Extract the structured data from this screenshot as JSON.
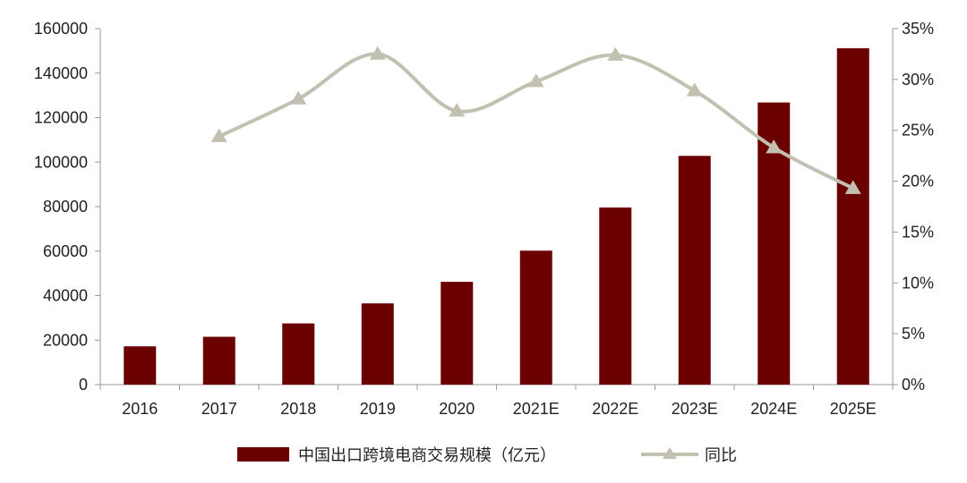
{
  "chart_data": {
    "type": "bar",
    "categories": [
      "2016",
      "2017",
      "2018",
      "2019",
      "2020",
      "2021E",
      "2022E",
      "2023E",
      "2024E",
      "2025E"
    ],
    "series": [
      {
        "name": "中国出口跨境电商交易规模（亿元）",
        "type": "bar",
        "axis": "left",
        "values": [
          17200,
          21500,
          27500,
          36500,
          46200,
          60200,
          79600,
          102800,
          126800,
          151200
        ]
      },
      {
        "name": "同比",
        "type": "line",
        "axis": "right",
        "values": [
          null,
          24.4,
          28.1,
          32.5,
          26.9,
          29.8,
          32.4,
          28.9,
          23.3,
          19.3
        ]
      }
    ],
    "y_left": {
      "ylim": [
        0,
        160000
      ],
      "ticks": [
        "0",
        "20000",
        "40000",
        "60000",
        "80000",
        "100000",
        "120000",
        "140000",
        "160000"
      ]
    },
    "y_right": {
      "ylim": [
        0,
        35
      ],
      "ticks": [
        "0%",
        "5%",
        "10%",
        "15%",
        "20%",
        "25%",
        "30%",
        "35%"
      ]
    },
    "legend": "bottom-center",
    "grid": false,
    "colors": {
      "bar": "#6b0000",
      "line": "#c2c0b1",
      "axis": "#999999",
      "text": "#222222"
    }
  }
}
